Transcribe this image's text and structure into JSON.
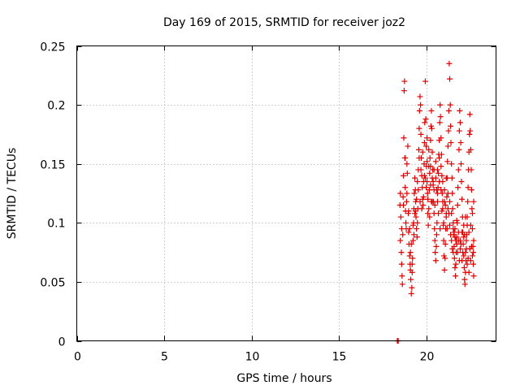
{
  "chart_data": {
    "type": "scatter",
    "title": "Day 169 of 2015, SRMTID for receiver joz2",
    "xlabel": "GPS time / hours",
    "ylabel": "SRMTID / TECUs",
    "xlim": [
      0,
      24
    ],
    "ylim": [
      0,
      0.25
    ],
    "xticks": [
      0,
      5,
      10,
      15,
      20
    ],
    "yticks": [
      0,
      0.05,
      0.1,
      0.15,
      0.2,
      0.25
    ],
    "ytick_labels": [
      "0",
      "0.05",
      "0.1",
      "0.15",
      "0.2",
      "0.25"
    ],
    "grid": true,
    "marker": "plus",
    "color": "#e00000",
    "points": [
      [
        18.35,
        0.0
      ],
      [
        18.4,
        0.0
      ],
      [
        18.5,
        0.115
      ],
      [
        18.52,
        0.085
      ],
      [
        18.55,
        0.105
      ],
      [
        18.58,
        0.075
      ],
      [
        18.6,
        0.065
      ],
      [
        18.62,
        0.055
      ],
      [
        18.64,
        0.048
      ],
      [
        18.66,
        0.09
      ],
      [
        18.68,
        0.122
      ],
      [
        18.7,
        0.14
      ],
      [
        18.72,
        0.172
      ],
      [
        18.74,
        0.212
      ],
      [
        18.76,
        0.22
      ],
      [
        18.78,
        0.155
      ],
      [
        18.8,
        0.13
      ],
      [
        18.82,
        0.11
      ],
      [
        18.84,
        0.1
      ],
      [
        18.86,
        0.095
      ],
      [
        18.88,
        0.118
      ],
      [
        18.9,
        0.15
      ],
      [
        18.92,
        0.142
      ],
      [
        18.95,
        0.165
      ],
      [
        18.98,
        0.108
      ],
      [
        19.0,
        0.092
      ],
      [
        19.02,
        0.082
      ],
      [
        19.05,
        0.072
      ],
      [
        19.08,
        0.065
      ],
      [
        19.1,
        0.06
      ],
      [
        19.12,
        0.052
      ],
      [
        19.15,
        0.04
      ],
      [
        19.18,
        0.045
      ],
      [
        19.2,
        0.058
      ],
      [
        19.22,
        0.07
      ],
      [
        19.25,
        0.085
      ],
      [
        19.28,
        0.1
      ],
      [
        19.3,
        0.112
      ],
      [
        19.32,
        0.125
      ],
      [
        19.35,
        0.138
      ],
      [
        19.38,
        0.128
      ],
      [
        19.4,
        0.118
      ],
      [
        19.42,
        0.105
      ],
      [
        19.45,
        0.095
      ],
      [
        19.48,
        0.088
      ],
      [
        19.5,
        0.1
      ],
      [
        19.52,
        0.112
      ],
      [
        19.55,
        0.145
      ],
      [
        19.58,
        0.162
      ],
      [
        19.6,
        0.18
      ],
      [
        19.62,
        0.195
      ],
      [
        19.65,
        0.207
      ],
      [
        19.68,
        0.2
      ],
      [
        19.7,
        0.175
      ],
      [
        19.72,
        0.155
      ],
      [
        19.75,
        0.14
      ],
      [
        19.78,
        0.13
      ],
      [
        19.8,
        0.12
      ],
      [
        19.82,
        0.115
      ],
      [
        19.85,
        0.135
      ],
      [
        19.88,
        0.15
      ],
      [
        19.9,
        0.168
      ],
      [
        19.92,
        0.185
      ],
      [
        19.95,
        0.22
      ],
      [
        19.98,
        0.188
      ],
      [
        20.0,
        0.165
      ],
      [
        20.02,
        0.148
      ],
      [
        20.05,
        0.135
      ],
      [
        20.08,
        0.125
      ],
      [
        20.1,
        0.108
      ],
      [
        20.12,
        0.098
      ],
      [
        20.15,
        0.112
      ],
      [
        20.18,
        0.128
      ],
      [
        20.2,
        0.142
      ],
      [
        20.22,
        0.155
      ],
      [
        20.25,
        0.17
      ],
      [
        20.28,
        0.182
      ],
      [
        20.3,
        0.195
      ],
      [
        20.32,
        0.18
      ],
      [
        20.35,
        0.16
      ],
      [
        20.38,
        0.145
      ],
      [
        20.4,
        0.132
      ],
      [
        20.42,
        0.118
      ],
      [
        20.45,
        0.108
      ],
      [
        20.48,
        0.095
      ],
      [
        20.5,
        0.085
      ],
      [
        20.52,
        0.075
      ],
      [
        20.55,
        0.068
      ],
      [
        20.58,
        0.08
      ],
      [
        20.6,
        0.09
      ],
      [
        20.62,
        0.1
      ],
      [
        20.65,
        0.118
      ],
      [
        20.68,
        0.13
      ],
      [
        20.7,
        0.142
      ],
      [
        20.72,
        0.158
      ],
      [
        20.75,
        0.17
      ],
      [
        20.78,
        0.185
      ],
      [
        20.8,
        0.2
      ],
      [
        20.82,
        0.19
      ],
      [
        20.85,
        0.172
      ],
      [
        20.88,
        0.158
      ],
      [
        20.9,
        0.14
      ],
      [
        20.92,
        0.125
      ],
      [
        20.95,
        0.112
      ],
      [
        20.98,
        0.098
      ],
      [
        21.0,
        0.085
      ],
      [
        21.02,
        0.072
      ],
      [
        21.05,
        0.06
      ],
      [
        21.08,
        0.07
      ],
      [
        21.1,
        0.082
      ],
      [
        21.12,
        0.095
      ],
      [
        21.15,
        0.108
      ],
      [
        21.18,
        0.122
      ],
      [
        21.2,
        0.138
      ],
      [
        21.22,
        0.152
      ],
      [
        21.25,
        0.165
      ],
      [
        21.28,
        0.178
      ],
      [
        21.3,
        0.195
      ],
      [
        21.32,
        0.235
      ],
      [
        21.35,
        0.222
      ],
      [
        21.38,
        0.2
      ],
      [
        21.4,
        0.182
      ],
      [
        21.42,
        0.168
      ],
      [
        21.45,
        0.15
      ],
      [
        21.48,
        0.138
      ],
      [
        21.5,
        0.125
      ],
      [
        21.52,
        0.112
      ],
      [
        21.55,
        0.1
      ],
      [
        21.58,
        0.09
      ],
      [
        21.6,
        0.08
      ],
      [
        21.62,
        0.07
      ],
      [
        21.65,
        0.062
      ],
      [
        21.68,
        0.055
      ],
      [
        21.7,
        0.065
      ],
      [
        21.72,
        0.075
      ],
      [
        21.75,
        0.088
      ],
      [
        21.78,
        0.1
      ],
      [
        21.8,
        0.115
      ],
      [
        21.82,
        0.13
      ],
      [
        21.85,
        0.145
      ],
      [
        21.88,
        0.162
      ],
      [
        21.9,
        0.178
      ],
      [
        21.92,
        0.195
      ],
      [
        21.95,
        0.185
      ],
      [
        21.98,
        0.168
      ],
      [
        22.0,
        0.15
      ],
      [
        22.02,
        0.135
      ],
      [
        22.05,
        0.12
      ],
      [
        22.08,
        0.105
      ],
      [
        22.1,
        0.092
      ],
      [
        22.12,
        0.082
      ],
      [
        22.15,
        0.072
      ],
      [
        22.18,
        0.062
      ],
      [
        22.2,
        0.052
      ],
      [
        22.22,
        0.048
      ],
      [
        22.25,
        0.058
      ],
      [
        22.28,
        0.068
      ],
      [
        22.3,
        0.078
      ],
      [
        22.32,
        0.09
      ],
      [
        22.35,
        0.105
      ],
      [
        22.38,
        0.118
      ],
      [
        22.4,
        0.13
      ],
      [
        22.42,
        0.145
      ],
      [
        22.45,
        0.16
      ],
      [
        22.48,
        0.175
      ],
      [
        22.5,
        0.192
      ],
      [
        22.52,
        0.178
      ],
      [
        22.55,
        0.162
      ],
      [
        22.58,
        0.145
      ],
      [
        22.6,
        0.128
      ],
      [
        22.62,
        0.112
      ],
      [
        22.65,
        0.095
      ],
      [
        22.68,
        0.08
      ],
      [
        22.7,
        0.065
      ],
      [
        22.72,
        0.055
      ],
      [
        18.52,
        0.125
      ],
      [
        18.6,
        0.095
      ],
      [
        18.7,
        0.115
      ],
      [
        18.8,
        0.155
      ],
      [
        18.9,
        0.125
      ],
      [
        19.0,
        0.11
      ],
      [
        19.1,
        0.075
      ],
      [
        19.2,
        0.065
      ],
      [
        19.3,
        0.09
      ],
      [
        19.4,
        0.11
      ],
      [
        19.5,
        0.135
      ],
      [
        19.6,
        0.155
      ],
      [
        19.7,
        0.145
      ],
      [
        19.8,
        0.16
      ],
      [
        19.9,
        0.14
      ],
      [
        20.0,
        0.13
      ],
      [
        20.1,
        0.12
      ],
      [
        20.2,
        0.105
      ],
      [
        20.3,
        0.118
      ],
      [
        20.4,
        0.135
      ],
      [
        20.5,
        0.115
      ],
      [
        20.6,
        0.128
      ],
      [
        20.7,
        0.108
      ],
      [
        20.8,
        0.095
      ],
      [
        20.9,
        0.11
      ],
      [
        21.0,
        0.1
      ],
      [
        21.1,
        0.115
      ],
      [
        21.2,
        0.095
      ],
      [
        21.3,
        0.108
      ],
      [
        21.4,
        0.09
      ],
      [
        21.5,
        0.078
      ],
      [
        21.6,
        0.092
      ],
      [
        21.7,
        0.085
      ],
      [
        21.8,
        0.075
      ],
      [
        21.9,
        0.068
      ],
      [
        22.0,
        0.082
      ],
      [
        22.1,
        0.075
      ],
      [
        22.2,
        0.09
      ],
      [
        22.3,
        0.085
      ],
      [
        22.4,
        0.07
      ],
      [
        22.5,
        0.078
      ],
      [
        22.6,
        0.08
      ],
      [
        22.7,
        0.075
      ],
      [
        20.05,
        0.172
      ],
      [
        20.15,
        0.148
      ],
      [
        20.25,
        0.132
      ],
      [
        20.35,
        0.118
      ],
      [
        20.45,
        0.128
      ],
      [
        20.55,
        0.138
      ],
      [
        20.65,
        0.125
      ],
      [
        20.75,
        0.135
      ],
      [
        20.85,
        0.128
      ],
      [
        20.95,
        0.118
      ],
      [
        21.05,
        0.128
      ],
      [
        21.15,
        0.138
      ],
      [
        21.25,
        0.125
      ],
      [
        21.35,
        0.118
      ],
      [
        21.45,
        0.108
      ],
      [
        21.55,
        0.095
      ],
      [
        21.65,
        0.088
      ],
      [
        21.75,
        0.082
      ],
      [
        21.85,
        0.092
      ],
      [
        21.95,
        0.085
      ],
      [
        22.05,
        0.092
      ],
      [
        22.15,
        0.098
      ],
      [
        22.25,
        0.105
      ],
      [
        22.35,
        0.098
      ],
      [
        22.45,
        0.092
      ],
      [
        22.55,
        0.098
      ],
      [
        22.65,
        0.108
      ],
      [
        22.72,
        0.118
      ],
      [
        19.05,
        0.095
      ],
      [
        19.15,
        0.082
      ],
      [
        19.25,
        0.098
      ],
      [
        19.35,
        0.108
      ],
      [
        19.45,
        0.12
      ],
      [
        19.55,
        0.128
      ],
      [
        19.65,
        0.118
      ],
      [
        19.75,
        0.112
      ],
      [
        19.85,
        0.122
      ],
      [
        19.95,
        0.138
      ],
      [
        20.05,
        0.152
      ],
      [
        20.15,
        0.162
      ],
      [
        20.25,
        0.148
      ],
      [
        20.35,
        0.138
      ],
      [
        20.45,
        0.145
      ],
      [
        20.55,
        0.152
      ],
      [
        20.65,
        0.145
      ],
      [
        20.75,
        0.155
      ],
      [
        20.85,
        0.148
      ],
      [
        20.95,
        0.135
      ],
      [
        21.05,
        0.118
      ],
      [
        21.15,
        0.105
      ],
      [
        21.25,
        0.112
      ],
      [
        21.35,
        0.098
      ],
      [
        21.45,
        0.085
      ],
      [
        21.55,
        0.075
      ],
      [
        21.65,
        0.095
      ],
      [
        21.75,
        0.102
      ],
      [
        21.85,
        0.085
      ],
      [
        21.95,
        0.078
      ],
      [
        22.05,
        0.068
      ],
      [
        22.15,
        0.088
      ],
      [
        22.25,
        0.075
      ],
      [
        22.35,
        0.065
      ],
      [
        22.45,
        0.058
      ],
      [
        22.55,
        0.068
      ],
      [
        22.65,
        0.072
      ],
      [
        22.72,
        0.085
      ]
    ]
  }
}
